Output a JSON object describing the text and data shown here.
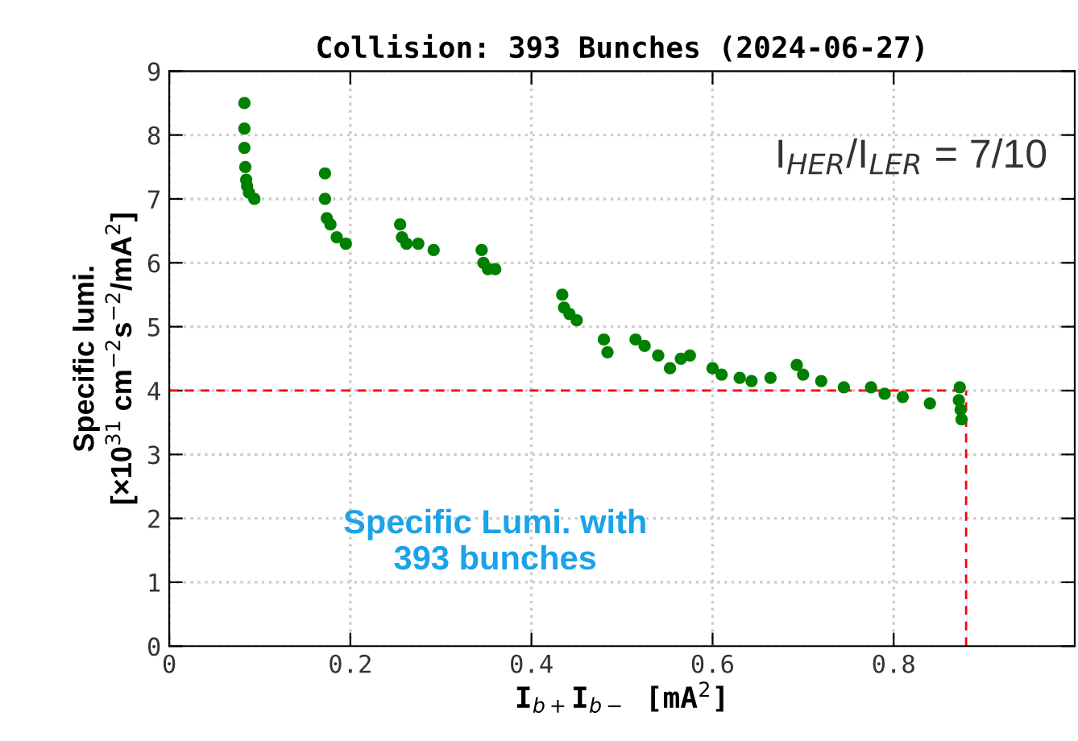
{
  "chart_data": {
    "type": "scatter",
    "title": "Collision: 393 Bunches (2024-06-27)",
    "xlabel": "I$_{b+}$I$_{b−}$ [mA$^{2}$]",
    "ylabel": "Specific lumi.\n[×10$^{31}$ cm$^{−2}$s$^{−2}$/mA$^{2}$]",
    "series": [
      {
        "color": "#008000",
        "x": [
          0.083,
          0.083,
          0.083,
          0.084,
          0.085,
          0.086,
          0.088,
          0.094,
          0.172,
          0.172,
          0.174,
          0.178,
          0.185,
          0.195,
          0.255,
          0.257,
          0.262,
          0.275,
          0.292,
          0.345,
          0.347,
          0.352,
          0.36,
          0.434,
          0.436,
          0.442,
          0.45,
          0.48,
          0.484,
          0.515,
          0.525,
          0.54,
          0.553,
          0.565,
          0.575,
          0.6,
          0.61,
          0.63,
          0.643,
          0.664,
          0.693,
          0.7,
          0.72,
          0.745,
          0.775,
          0.79,
          0.81,
          0.84,
          0.873,
          0.872,
          0.874,
          0.875
        ],
        "values": [
          8.5,
          8.1,
          7.8,
          7.5,
          7.3,
          7.2,
          7.1,
          7.0,
          7.4,
          7.0,
          6.7,
          6.6,
          6.4,
          6.3,
          6.6,
          6.4,
          6.3,
          6.3,
          6.2,
          6.2,
          6.0,
          5.9,
          5.9,
          5.5,
          5.3,
          5.2,
          5.1,
          4.8,
          4.6,
          4.8,
          4.7,
          4.55,
          4.35,
          4.5,
          4.55,
          4.35,
          4.25,
          4.2,
          4.15,
          4.2,
          4.4,
          4.25,
          4.15,
          4.05,
          4.05,
          3.95,
          3.9,
          3.8,
          4.05,
          3.85,
          3.7,
          3.55
        ]
      }
    ],
    "xlim": [
      0,
      1
    ],
    "ylim": [
      0,
      9
    ],
    "xticks": [
      0,
      0.2,
      0.4,
      0.6,
      0.8
    ],
    "yticks": [
      0,
      1,
      2,
      3,
      4,
      5,
      6,
      7,
      8,
      9
    ],
    "grid": true,
    "marker": "circle",
    "ref_lines": [
      {
        "axis": "y",
        "value": 4.0,
        "color": "#ff0000",
        "line_style": "dashed"
      },
      {
        "axis": "x",
        "value": 0.88,
        "color": "#ff0000",
        "line_style": "dashed"
      }
    ],
    "annotations": [
      "I$_{HER}$/I$_{LER}$ = 7/10",
      "Specific Lumi. with\n393 bunches"
    ]
  }
}
